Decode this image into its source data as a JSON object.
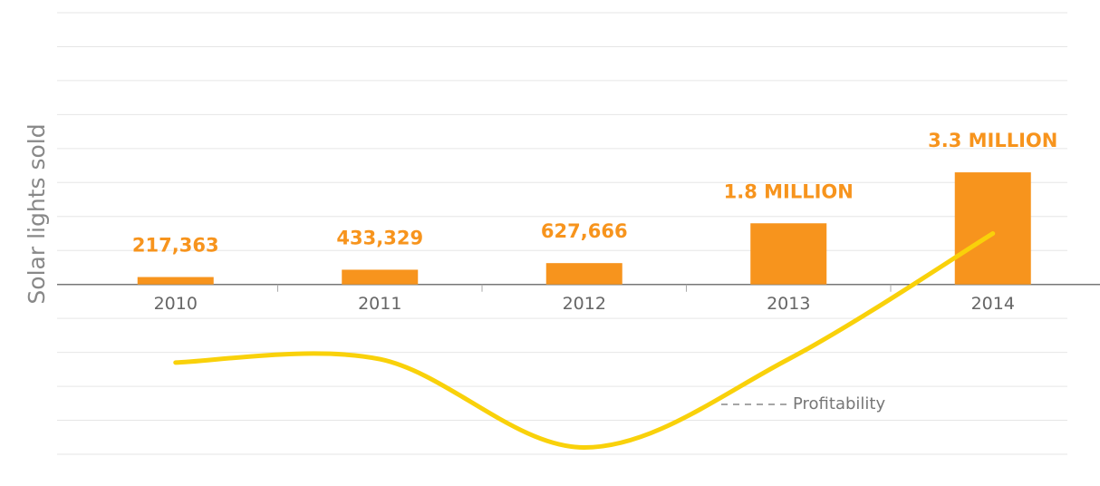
{
  "chart_data": {
    "type": "bar",
    "y_label": "Solar lights sold",
    "categories": [
      "2010",
      "2011",
      "2012",
      "2013",
      "2014"
    ],
    "values": [
      217363,
      433329,
      627666,
      1800000,
      3300000
    ],
    "value_labels": [
      "217,363",
      "433,329",
      "627,666",
      "1.8 MILLION",
      "3.3 MILLION"
    ],
    "color": "#f7941d",
    "series": [
      {
        "name": "Profitability",
        "color": "#f9d10a",
        "values": [
          -2300000,
          -2200000,
          -4800000,
          -2200000,
          1500000
        ]
      }
    ],
    "ylim": [
      -5000000,
      8000000
    ],
    "yticks": [
      -5000000,
      -4000000,
      -3000000,
      -2000000,
      -1000000,
      0,
      1000000,
      2000000,
      3000000,
      4000000,
      5000000,
      6000000,
      7000000,
      8000000
    ],
    "grid": true
  }
}
